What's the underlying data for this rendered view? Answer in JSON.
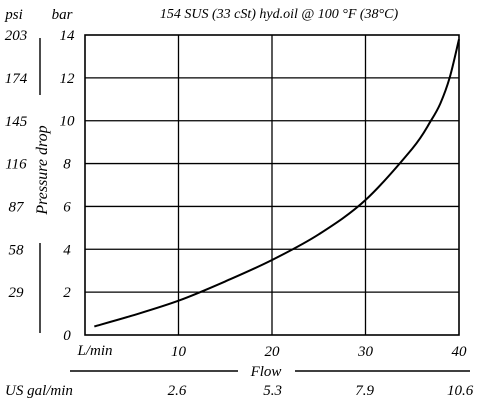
{
  "chart_data": {
    "type": "line",
    "title": "154 SUS (33 cSt) hyd.oil @ 100   °F (38°C)",
    "xlabel": "Flow",
    "ylabel": "Pressure drop",
    "x_unit_primary": "L/min",
    "x_unit_secondary": "US gal/min",
    "y_unit_left": "psi",
    "y_unit_right": "bar",
    "xlim": [
      0,
      40
    ],
    "ylim": [
      0,
      14
    ],
    "x_ticks": [
      "10",
      "20",
      "30",
      "40"
    ],
    "x_ticks_secondary": [
      "2.6",
      "5.3",
      "7.9",
      "10.6"
    ],
    "y_ticks_bar": [
      "0",
      "2",
      "4",
      "6",
      "8",
      "10",
      "12",
      "14"
    ],
    "y_ticks_psi": [
      "29",
      "58",
      "87",
      "116",
      "145",
      "174",
      "203"
    ],
    "grid": true,
    "series": [
      {
        "x": [
          1,
          5,
          10,
          15,
          20,
          25,
          30,
          35,
          37,
          38,
          39,
          40
        ],
        "y": [
          0.4,
          0.9,
          1.6,
          2.5,
          3.5,
          4.7,
          6.3,
          8.7,
          10.0,
          10.8,
          12.0,
          13.8
        ]
      }
    ]
  }
}
